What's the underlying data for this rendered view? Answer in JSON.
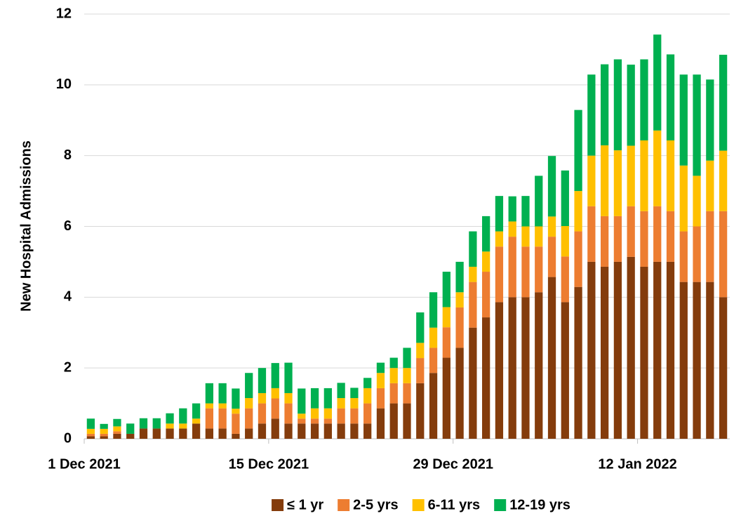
{
  "chart_data": {
    "type": "stacked-bar",
    "y_label": "New Hospital Admissions",
    "categories": [
      "1 Dec 2021",
      null,
      null,
      null,
      null,
      null,
      null,
      null,
      null,
      null,
      null,
      null,
      null,
      null,
      "15 Dec 2021",
      null,
      null,
      null,
      null,
      null,
      null,
      null,
      null,
      null,
      null,
      null,
      null,
      null,
      "29 Dec 2021",
      null,
      null,
      null,
      null,
      null,
      null,
      null,
      null,
      null,
      null,
      null,
      null,
      null,
      "12 Jan 2022",
      null,
      null,
      null,
      null,
      null,
      null
    ],
    "series": [
      {
        "name": "≤ 1 yr",
        "color": "#843c0c",
        "values": [
          0.07,
          0.07,
          0.14,
          0.14,
          0.29,
          0.29,
          0.29,
          0.29,
          0.43,
          0.29,
          0.29,
          0.14,
          0.29,
          0.43,
          0.57,
          0.43,
          0.43,
          0.43,
          0.43,
          0.43,
          0.43,
          0.43,
          0.86,
          1.0,
          1.0,
          1.57,
          1.86,
          2.29,
          2.57,
          3.14,
          3.43,
          3.86,
          4.0,
          4.0,
          4.14,
          4.57,
          3.86,
          4.29,
          5.0,
          4.86,
          5.0,
          5.14,
          4.86,
          5.0,
          5.0,
          4.43,
          4.43,
          4.43,
          4.0
        ]
      },
      {
        "name": "2-5 yrs",
        "color": "#ed7d31",
        "values": [
          0.07,
          0.07,
          0.07,
          0,
          0,
          0,
          0,
          0,
          0,
          0.57,
          0.57,
          0.57,
          0.57,
          0.57,
          0.57,
          0.57,
          0.14,
          0.14,
          0.14,
          0.43,
          0.43,
          0.57,
          0.57,
          0.57,
          0.57,
          0.71,
          0.71,
          0.86,
          1.14,
          1.29,
          1.29,
          1.57,
          1.71,
          1.43,
          1.29,
          1.14,
          1.29,
          1.57,
          1.57,
          1.43,
          1.29,
          1.43,
          1.57,
          1.57,
          1.43,
          1.43,
          1.57,
          2.0,
          2.43
        ]
      },
      {
        "name": "6-11 yrs",
        "color": "#ffc000",
        "values": [
          0.14,
          0.14,
          0.14,
          0,
          0,
          0,
          0.14,
          0.14,
          0.14,
          0.14,
          0.14,
          0.14,
          0.29,
          0.29,
          0.29,
          0.29,
          0.14,
          0.29,
          0.29,
          0.29,
          0.29,
          0.43,
          0.43,
          0.43,
          0.43,
          0.43,
          0.57,
          0.57,
          0.43,
          0.43,
          0.57,
          0.43,
          0.43,
          0.57,
          0.57,
          0.57,
          0.86,
          1.14,
          1.43,
          2.0,
          1.86,
          1.71,
          2.0,
          2.14,
          2.0,
          1.86,
          1.43,
          1.43,
          1.71
        ]
      },
      {
        "name": "12-19 yrs",
        "color": "#00b050",
        "values": [
          0.29,
          0.14,
          0.21,
          0.29,
          0.29,
          0.29,
          0.29,
          0.43,
          0.43,
          0.57,
          0.57,
          0.57,
          0.71,
          0.71,
          0.71,
          0.86,
          0.71,
          0.57,
          0.57,
          0.43,
          0.29,
          0.29,
          0.29,
          0.29,
          0.57,
          0.86,
          1.0,
          1.0,
          0.86,
          1.0,
          1.0,
          1.0,
          0.71,
          0.86,
          1.43,
          1.71,
          1.57,
          2.29,
          2.29,
          2.29,
          2.57,
          2.29,
          2.29,
          2.71,
          2.43,
          2.57,
          2.86,
          2.29,
          2.71
        ]
      }
    ],
    "ylim": [
      0,
      12
    ],
    "yticks": [
      0,
      2,
      4,
      6,
      8,
      10,
      12
    ],
    "grid": true,
    "legend": "bottom"
  }
}
